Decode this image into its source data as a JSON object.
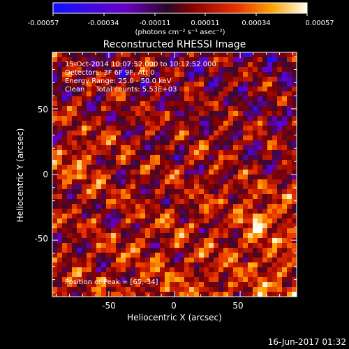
{
  "colorbar": {
    "ticks": [
      "-0.00057",
      "-0.00034",
      "-0.00011",
      "0.00011",
      "0.00034",
      "0.00057"
    ],
    "units": "(photons cm⁻² s⁻¹ asec⁻²)"
  },
  "footer": {
    "date": "16-Jun-2017 01:32"
  },
  "colors": {
    "background": "#000000",
    "colormap": [
      "#1010ff",
      "#6a00c8",
      "#3a0830",
      "#8a0000",
      "#e83000",
      "#ffa000",
      "#fffff0"
    ]
  },
  "chart_data": {
    "type": "heatmap",
    "title": "Reconstructed RHESSI Image",
    "xlabel": "Heliocentric X (arcsec)",
    "ylabel": "Heliocentric Y (arcsec)",
    "xlim": [
      -93,
      93
    ],
    "ylim": [
      -93,
      93
    ],
    "xticks": [
      "-50",
      "0",
      "50"
    ],
    "yticks": [
      "50",
      "0",
      "-50"
    ],
    "value_range": [
      -0.00057,
      0.00057
    ],
    "annotations": [
      "15-Oct-2014 10:07:52.000 to 10:17:52.000",
      "Detectors: 3F 6F 9F, Att 0",
      "Energy Range: 25.0 - 50.0 keV",
      "Clean     Total counts: 5.53E+03"
    ],
    "peak_label": "Position of Peak = [65,-34]",
    "peak": [
      65,
      -34
    ]
  }
}
